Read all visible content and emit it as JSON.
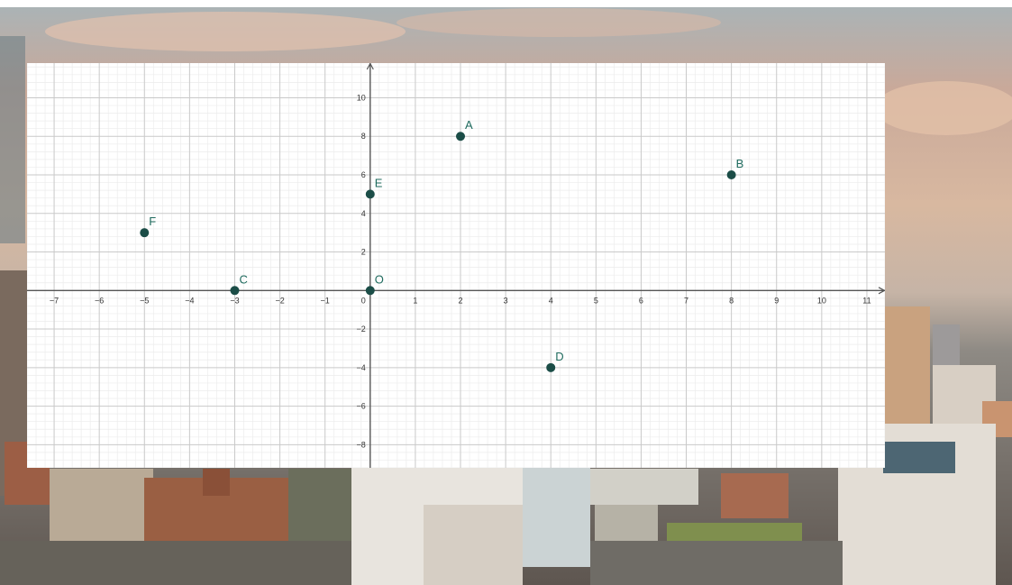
{
  "colors": {
    "point_fill": "#1b4d47",
    "point_label": "#1f6b5e",
    "axis": "#555555",
    "grid_major": "#c9c9c9",
    "grid_minor": "#ececec"
  },
  "chart_data": {
    "type": "scatter",
    "title": "",
    "xlabel": "",
    "ylabel": "",
    "xlim": [
      -7.6,
      11.4
    ],
    "ylim": [
      -9.2,
      11.8
    ],
    "grid": true,
    "x_ticks": [
      -7,
      -6,
      -5,
      -4,
      -3,
      -2,
      -1,
      1,
      2,
      3,
      4,
      5,
      6,
      7,
      8,
      9,
      10,
      11
    ],
    "y_ticks": [
      -8,
      -6,
      -4,
      -2,
      2,
      4,
      6,
      8,
      10
    ],
    "origin_label": "0",
    "points": [
      {
        "label": "A",
        "x": 2,
        "y": 8
      },
      {
        "label": "B",
        "x": 8,
        "y": 6
      },
      {
        "label": "C",
        "x": -3,
        "y": 0
      },
      {
        "label": "D",
        "x": 4,
        "y": -4
      },
      {
        "label": "E",
        "x": 0,
        "y": 5
      },
      {
        "label": "F",
        "x": -5,
        "y": 3
      },
      {
        "label": "O",
        "x": 0,
        "y": 0
      }
    ]
  }
}
